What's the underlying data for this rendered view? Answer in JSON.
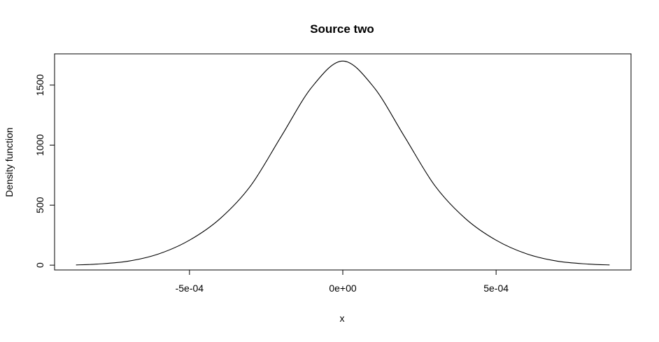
{
  "chart_data": {
    "type": "line",
    "title": "Source two",
    "xlabel": "x",
    "ylabel": "Density function",
    "xlim": [
      -0.00094,
      0.00094
    ],
    "ylim": [
      -40,
      1760
    ],
    "grid": false,
    "legend": "none",
    "x_ticks": [
      {
        "value": -0.0005,
        "label": "-5e-04"
      },
      {
        "value": 0,
        "label": "0e+00"
      },
      {
        "value": 0.0005,
        "label": "5e-04"
      }
    ],
    "y_ticks": [
      {
        "value": 0,
        "label": "0"
      },
      {
        "value": 500,
        "label": "500"
      },
      {
        "value": 1000,
        "label": "1000"
      },
      {
        "value": 1500,
        "label": "1500"
      }
    ],
    "series": [
      {
        "color": "#000000",
        "x": [
          -0.00087,
          -0.0008,
          -0.0007,
          -0.0006,
          -0.0005,
          -0.0004,
          -0.0003,
          -0.0002,
          -0.0001,
          0,
          0.0001,
          0.0002,
          0.0003,
          0.0004,
          0.0005,
          0.0006,
          0.0007,
          0.0008,
          0.00087
        ],
        "y": [
          2,
          9,
          33,
          94,
          208,
          388,
          663,
          1076,
          1486,
          1700,
          1486,
          1076,
          663,
          388,
          208,
          94,
          33,
          9,
          2
        ]
      }
    ]
  }
}
